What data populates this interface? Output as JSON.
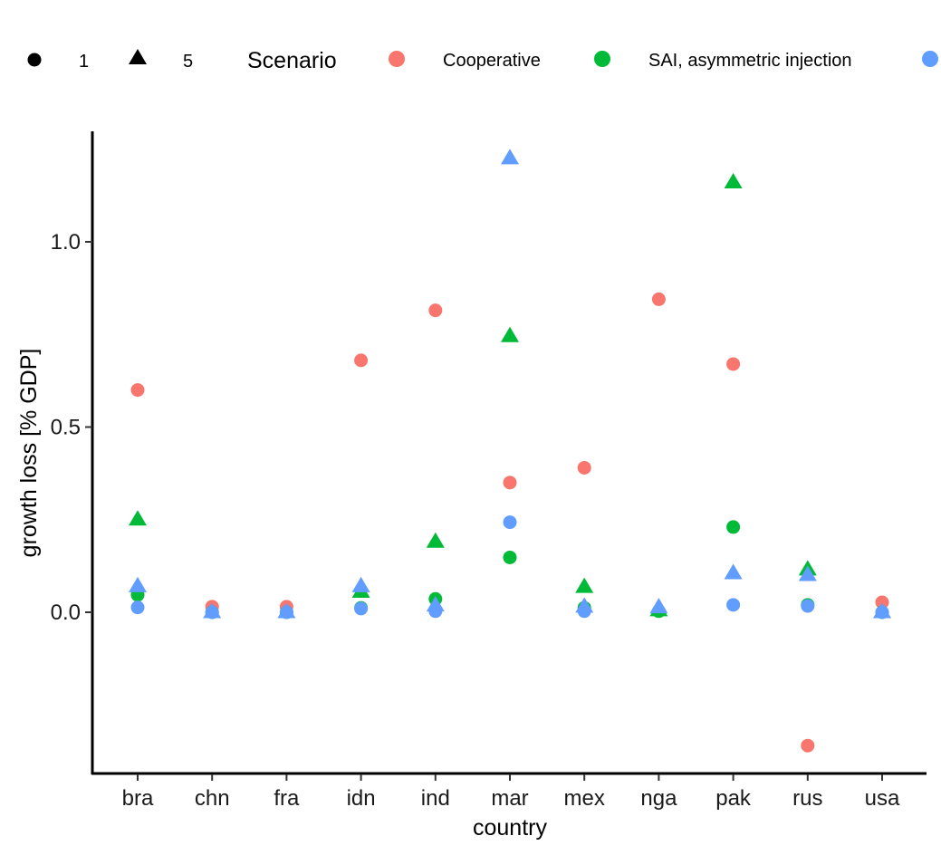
{
  "chart_data": {
    "type": "scatter",
    "title": "",
    "xlabel": "country",
    "ylabel": "growth loss [% GDP]",
    "categories": [
      "bra",
      "chn",
      "fra",
      "idn",
      "ind",
      "mar",
      "mex",
      "nga",
      "pak",
      "rus",
      "usa"
    ],
    "ylim": [
      -0.44,
      1.3
    ],
    "yticks": [
      0.0,
      0.5,
      1.0
    ],
    "ytick_labels": [
      "0.0",
      "0.5",
      "1.0"
    ],
    "grid": false,
    "legend": {
      "position": "top",
      "shape_title": "",
      "shape_entries": [
        {
          "label": "1",
          "shape": "circle"
        },
        {
          "label": "5",
          "shape": "triangle"
        }
      ],
      "color_title": "Scenario",
      "color_entries": [
        {
          "label": "Cooperative",
          "color": "#F8766D"
        },
        {
          "label": "SAI, asymmetric injection",
          "color": "#00BA38"
        },
        {
          "label": "",
          "color": "#619CFF"
        }
      ]
    },
    "series": [
      {
        "name": "Cooperative",
        "color": "#F8766D",
        "points": [
          {
            "x": "bra",
            "y": 0.6,
            "shape": "circle"
          },
          {
            "x": "chn",
            "y": 0.015,
            "shape": "circle"
          },
          {
            "x": "fra",
            "y": 0.015,
            "shape": "circle"
          },
          {
            "x": "idn",
            "y": 0.68,
            "shape": "circle"
          },
          {
            "x": "ind",
            "y": 0.815,
            "shape": "circle"
          },
          {
            "x": "mar",
            "y": 0.35,
            "shape": "circle"
          },
          {
            "x": "mex",
            "y": 0.39,
            "shape": "circle"
          },
          {
            "x": "nga",
            "y": 0.845,
            "shape": "circle"
          },
          {
            "x": "pak",
            "y": 0.67,
            "shape": "circle"
          },
          {
            "x": "rus",
            "y": -0.36,
            "shape": "circle"
          },
          {
            "x": "usa",
            "y": 0.027,
            "shape": "circle"
          }
        ]
      },
      {
        "name": "SAI, asymmetric injection",
        "color": "#00BA38",
        "points": [
          {
            "x": "bra",
            "y": 0.047,
            "shape": "circle"
          },
          {
            "x": "bra",
            "y": 0.25,
            "shape": "triangle"
          },
          {
            "x": "chn",
            "y": 0.0,
            "shape": "circle"
          },
          {
            "x": "fra",
            "y": 0.0,
            "shape": "circle"
          },
          {
            "x": "idn",
            "y": 0.012,
            "shape": "circle"
          },
          {
            "x": "idn",
            "y": 0.055,
            "shape": "triangle"
          },
          {
            "x": "ind",
            "y": 0.036,
            "shape": "circle"
          },
          {
            "x": "ind",
            "y": 0.19,
            "shape": "triangle"
          },
          {
            "x": "mar",
            "y": 0.148,
            "shape": "circle"
          },
          {
            "x": "mar",
            "y": 0.745,
            "shape": "triangle"
          },
          {
            "x": "mex",
            "y": 0.012,
            "shape": "circle"
          },
          {
            "x": "mex",
            "y": 0.068,
            "shape": "triangle"
          },
          {
            "x": "nga",
            "y": 0.003,
            "shape": "circle"
          },
          {
            "x": "nga",
            "y": 0.005,
            "shape": "triangle"
          },
          {
            "x": "pak",
            "y": 0.23,
            "shape": "circle"
          },
          {
            "x": "pak",
            "y": 1.16,
            "shape": "triangle"
          },
          {
            "x": "rus",
            "y": 0.02,
            "shape": "circle"
          },
          {
            "x": "rus",
            "y": 0.115,
            "shape": "triangle"
          },
          {
            "x": "usa",
            "y": 0.0,
            "shape": "circle"
          }
        ]
      },
      {
        "name": "",
        "color": "#619CFF",
        "points": [
          {
            "x": "bra",
            "y": 0.013,
            "shape": "circle"
          },
          {
            "x": "bra",
            "y": 0.07,
            "shape": "triangle"
          },
          {
            "x": "chn",
            "y": 0.0,
            "shape": "circle"
          },
          {
            "x": "chn",
            "y": 0.0,
            "shape": "triangle"
          },
          {
            "x": "fra",
            "y": 0.0,
            "shape": "circle"
          },
          {
            "x": "fra",
            "y": 0.0,
            "shape": "triangle"
          },
          {
            "x": "idn",
            "y": 0.01,
            "shape": "circle"
          },
          {
            "x": "idn",
            "y": 0.07,
            "shape": "triangle"
          },
          {
            "x": "ind",
            "y": 0.003,
            "shape": "circle"
          },
          {
            "x": "ind",
            "y": 0.018,
            "shape": "triangle"
          },
          {
            "x": "mar",
            "y": 0.243,
            "shape": "circle"
          },
          {
            "x": "mar",
            "y": 1.225,
            "shape": "triangle"
          },
          {
            "x": "mex",
            "y": 0.003,
            "shape": "circle"
          },
          {
            "x": "mex",
            "y": 0.015,
            "shape": "triangle"
          },
          {
            "x": "nga",
            "y": 0.013,
            "shape": "triangle"
          },
          {
            "x": "pak",
            "y": 0.02,
            "shape": "circle"
          },
          {
            "x": "pak",
            "y": 0.105,
            "shape": "triangle"
          },
          {
            "x": "rus",
            "y": 0.017,
            "shape": "circle"
          },
          {
            "x": "rus",
            "y": 0.1,
            "shape": "triangle"
          },
          {
            "x": "usa",
            "y": 0.0,
            "shape": "circle"
          },
          {
            "x": "usa",
            "y": 0.0,
            "shape": "triangle"
          }
        ]
      }
    ]
  }
}
